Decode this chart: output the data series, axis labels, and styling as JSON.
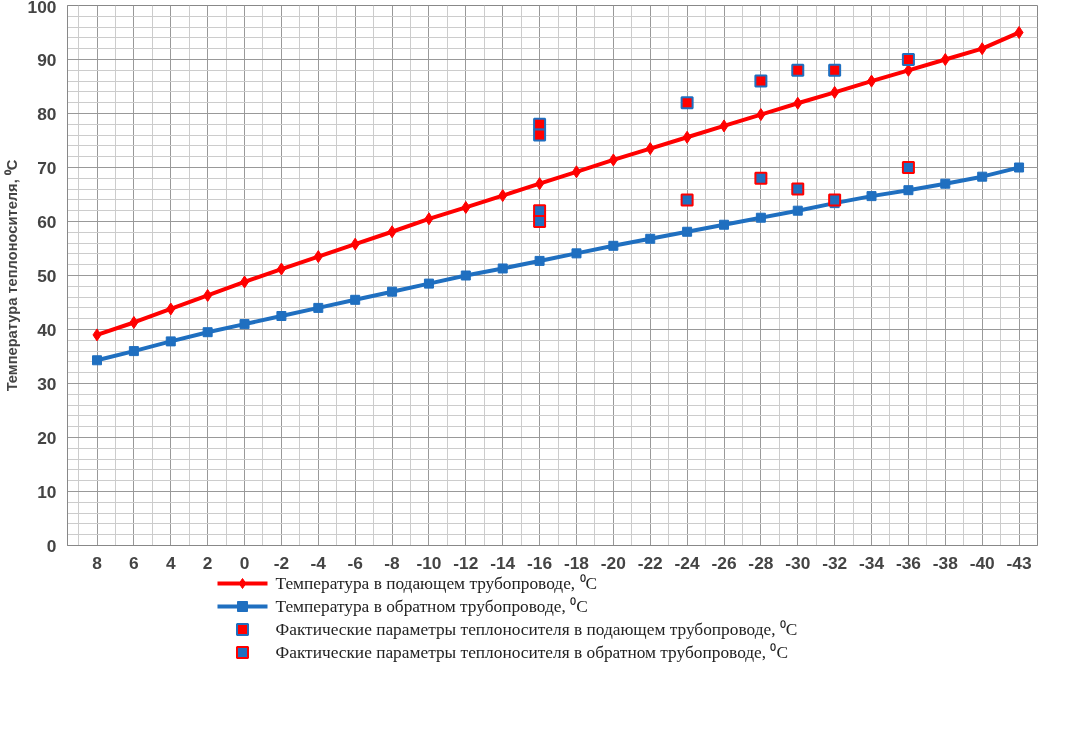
{
  "chart_data": {
    "type": "line",
    "ylabel": "Температура теплоносителя, ⁰C",
    "categories": [
      "8",
      "6",
      "4",
      "2",
      "0",
      "-2",
      "-4",
      "-6",
      "-8",
      "-10",
      "-12",
      "-14",
      "-16",
      "-18",
      "-20",
      "-22",
      "-24",
      "-26",
      "-28",
      "-30",
      "-32",
      "-34",
      "-36",
      "-38",
      "-40",
      "-43"
    ],
    "ylim": [
      0,
      100
    ],
    "yticks": [
      0,
      10,
      20,
      30,
      40,
      50,
      60,
      70,
      80,
      90,
      100
    ],
    "grid": true,
    "legend": "bottom",
    "series": [
      {
        "name": "Температура  в подающем трубопроводе, ⁰C",
        "color": "#ff0000",
        "marker": "diamond",
        "values": [
          39,
          41.3,
          43.8,
          46.3,
          48.8,
          51.2,
          53.5,
          55.8,
          58.1,
          60.5,
          62.6,
          64.8,
          67,
          69.2,
          71.4,
          73.5,
          75.6,
          77.7,
          79.8,
          81.9,
          83.9,
          86,
          88,
          90,
          92,
          95
        ]
      },
      {
        "name": "Температура  в обратном трубопроводе, ⁰C",
        "color": "#1f6fc0",
        "marker": "square",
        "values": [
          34.3,
          36,
          37.8,
          39.5,
          41,
          42.5,
          44,
          45.5,
          47,
          48.5,
          50,
          51.3,
          52.7,
          54.1,
          55.5,
          56.8,
          58.1,
          59.4,
          60.7,
          62,
          63.4,
          64.7,
          65.8,
          67,
          68.3,
          70
        ]
      },
      {
        "name": "Фактические параметры теплоносителя в подающем трубопроводе, ⁰C",
        "type": "scatter",
        "color": "#ff0000",
        "marker": "square",
        "x": [
          "-16",
          "-16",
          "-24",
          "-28",
          "-30",
          "-32",
          "-36"
        ],
        "values": [
          78,
          76,
          82,
          86,
          88,
          88,
          90
        ]
      },
      {
        "name": "Фактические параметры теплоносителя в обратном трубопроводе, ⁰C",
        "type": "scatter",
        "color": "#1f6fc0",
        "marker": "square",
        "x": [
          "-16",
          "-16",
          "-24",
          "-28",
          "-30",
          "-32",
          "-36"
        ],
        "values": [
          62,
          60,
          64,
          68,
          66,
          64,
          70
        ]
      }
    ]
  }
}
